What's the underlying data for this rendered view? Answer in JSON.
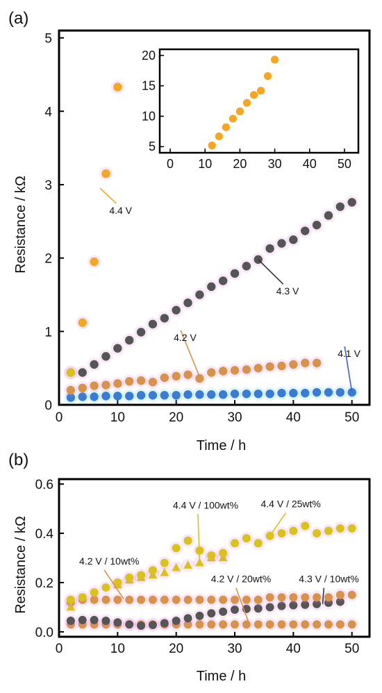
{
  "chart_data": [
    {
      "panel_label": "(a)",
      "type": "scatter",
      "xlabel": "Time / h",
      "ylabel": "Resistance / kΩ",
      "xlim": [
        0,
        53
      ],
      "ylim": [
        0,
        5.1
      ],
      "xticks": [
        "0",
        "10",
        "20",
        "30",
        "40",
        "50"
      ],
      "yticks": [
        "0",
        "1",
        "2",
        "3",
        "4",
        "5"
      ],
      "grid": false,
      "series": [
        {
          "name": "4.4 V",
          "color": "#F5A623",
          "marker": "circle",
          "x": [
            2,
            4,
            6,
            8,
            10
          ],
          "y": [
            0.44,
            1.12,
            1.95,
            3.15,
            4.33
          ]
        },
        {
          "name": "4.3 V",
          "color": "#555555",
          "marker": "circle",
          "x": [
            4,
            6,
            8,
            10,
            12,
            14,
            16,
            18,
            20,
            22,
            24,
            26,
            28,
            30,
            32,
            34,
            36,
            38,
            40,
            42,
            44,
            46,
            48,
            50
          ],
          "y": [
            0.44,
            0.55,
            0.66,
            0.77,
            0.88,
            0.99,
            1.1,
            1.18,
            1.29,
            1.39,
            1.5,
            1.61,
            1.69,
            1.79,
            1.89,
            1.98,
            2.13,
            2.2,
            2.25,
            2.37,
            2.45,
            2.58,
            2.7,
            2.76
          ]
        },
        {
          "name": "4.2 V",
          "color": "#D9924A",
          "marker": "circle",
          "x": [
            2,
            4,
            6,
            8,
            10,
            12,
            14,
            16,
            18,
            20,
            22,
            24,
            26,
            28,
            30,
            32,
            34,
            36,
            38,
            40,
            42,
            44
          ],
          "y": [
            0.2,
            0.23,
            0.26,
            0.27,
            0.29,
            0.32,
            0.33,
            0.31,
            0.37,
            0.39,
            0.41,
            0.36,
            0.44,
            0.46,
            0.47,
            0.48,
            0.5,
            0.52,
            0.53,
            0.55,
            0.57,
            0.57
          ]
        },
        {
          "name": "4.1 V",
          "color": "#3A7BD5",
          "marker": "circle",
          "x": [
            2,
            4,
            6,
            8,
            10,
            12,
            14,
            16,
            18,
            20,
            22,
            24,
            26,
            28,
            30,
            32,
            34,
            36,
            38,
            40,
            42,
            44,
            46,
            48,
            50
          ],
          "y": [
            0.1,
            0.11,
            0.11,
            0.12,
            0.12,
            0.12,
            0.13,
            0.13,
            0.13,
            0.13,
            0.14,
            0.14,
            0.14,
            0.14,
            0.15,
            0.15,
            0.15,
            0.15,
            0.16,
            0.16,
            0.16,
            0.17,
            0.17,
            0.17,
            0.17
          ]
        },
        {
          "name": "4.2 V / 10wt% (yellow)",
          "color": "#D9C21A",
          "marker": "circle",
          "x": [
            2
          ],
          "y": [
            0.44
          ]
        }
      ],
      "annotations": [
        {
          "text": "4.4 V",
          "x": 7,
          "y": 2.95,
          "tx": 10,
          "ty": 2.65
        },
        {
          "text": "4.3 V",
          "x": 34,
          "y": 1.98,
          "tx": 38.5,
          "ty": 1.55
        },
        {
          "text": "4.2 V",
          "x": 24,
          "y": 0.38,
          "tx": 21,
          "ty": 0.92
        },
        {
          "text": "4.1 V",
          "x": 50,
          "y": 0.17,
          "tx": 49,
          "ty": 0.7
        }
      ],
      "inset": {
        "xlim": [
          -3,
          54
        ],
        "ylim": [
          4,
          21
        ],
        "xticks": [
          "0",
          "10",
          "20",
          "30",
          "40",
          "50"
        ],
        "yticks": [
          "5",
          "10",
          "15",
          "20"
        ],
        "color": "#F5A623",
        "x": [
          12,
          14,
          16,
          18,
          20,
          22,
          24,
          26,
          28,
          30
        ],
        "y": [
          5.2,
          6.7,
          8.2,
          9.6,
          10.8,
          12.2,
          13.5,
          14.2,
          16.6,
          19.3
        ]
      }
    },
    {
      "panel_label": "(b)",
      "type": "scatter",
      "xlabel": "Time / h",
      "ylabel": "Resistance / kΩ",
      "xlim": [
        0,
        53
      ],
      "ylim": [
        -0.02,
        0.62
      ],
      "xticks": [
        "0",
        "10",
        "20",
        "30",
        "40",
        "50"
      ],
      "yticks": [
        "0.0",
        "0.2",
        "0.4",
        "0.6"
      ],
      "grid": false,
      "series": [
        {
          "name": "4.4 V / 25wt%",
          "color": "#D9C21A",
          "marker": "circle",
          "x": [
            2,
            4,
            6,
            8,
            10,
            12,
            14,
            16,
            18,
            20,
            22,
            24,
            26,
            28,
            30,
            32,
            34,
            36,
            38,
            40,
            42,
            44,
            46,
            48,
            50
          ],
          "y": [
            0.13,
            0.14,
            0.16,
            0.18,
            0.2,
            0.22,
            0.23,
            0.25,
            0.28,
            0.34,
            0.37,
            0.33,
            0.31,
            0.32,
            0.36,
            0.38,
            0.36,
            0.39,
            0.4,
            0.41,
            0.43,
            0.4,
            0.41,
            0.42,
            0.42
          ]
        },
        {
          "name": "4.4 V / 100wt%",
          "color": "#D9C21A",
          "marker": "triangle",
          "x": [
            2,
            10,
            12,
            14,
            16,
            18,
            20,
            22,
            24,
            26,
            28
          ],
          "y": [
            0.1,
            0.19,
            0.21,
            0.22,
            0.23,
            0.24,
            0.26,
            0.27,
            0.28,
            0.3,
            0.3
          ]
        },
        {
          "name": "4.2 V / 10wt%",
          "color": "#D9924A",
          "marker": "circle",
          "x": [
            2,
            4,
            6,
            8,
            10,
            12,
            14,
            16,
            18,
            20,
            22,
            24,
            26,
            28,
            30,
            32,
            34,
            36,
            38,
            40,
            42,
            44,
            46,
            48,
            50
          ],
          "y": [
            0.12,
            0.13,
            0.13,
            0.13,
            0.13,
            0.13,
            0.13,
            0.13,
            0.13,
            0.13,
            0.13,
            0.13,
            0.13,
            0.13,
            0.13,
            0.13,
            0.13,
            0.14,
            0.14,
            0.14,
            0.14,
            0.14,
            0.14,
            0.15,
            0.15
          ]
        },
        {
          "name": "4.3 V / 10wt%",
          "color": "#555555",
          "marker": "circle",
          "x": [
            2,
            4,
            6,
            8,
            10,
            12,
            14,
            16,
            18,
            20,
            22,
            24,
            26,
            28,
            30,
            32,
            34,
            36,
            38,
            40,
            42,
            44,
            46,
            48
          ],
          "y": [
            0.045,
            0.048,
            0.048,
            0.045,
            0.038,
            0.03,
            0.025,
            0.028,
            0.035,
            0.045,
            0.055,
            0.065,
            0.075,
            0.082,
            0.09,
            0.093,
            0.095,
            0.1,
            0.105,
            0.108,
            0.11,
            0.113,
            0.118,
            0.122
          ]
        },
        {
          "name": "4.2 V / 20wt%",
          "color": "#D9924A",
          "marker": "circle",
          "x": [
            2,
            4,
            6,
            8,
            10,
            12,
            14,
            16,
            18,
            20,
            22,
            24,
            26,
            28,
            30,
            32,
            34,
            36,
            38,
            40,
            42,
            44,
            46,
            48,
            50
          ],
          "y": [
            0.03,
            0.03,
            0.03,
            0.03,
            0.03,
            0.03,
            0.03,
            0.03,
            0.03,
            0.03,
            0.03,
            0.03,
            0.03,
            0.03,
            0.03,
            0.03,
            0.03,
            0.03,
            0.03,
            0.03,
            0.03,
            0.03,
            0.03,
            0.03,
            0.03
          ]
        }
      ],
      "annotations": [
        {
          "text": "4.4 V / 100wt%",
          "x": 24,
          "y": 0.29,
          "tx": 23,
          "ty": 0.495
        },
        {
          "text": "4.4 V / 25wt%",
          "x": 36,
          "y": 0.39,
          "tx": 38,
          "ty": 0.5
        },
        {
          "text": "4.2 V / 10wt%",
          "x": 11,
          "y": 0.135,
          "tx": 7,
          "ty": 0.268
        },
        {
          "text": "4.2 V / 20wt%",
          "x": 32.5,
          "y": 0.03,
          "tx": 29.5,
          "ty": 0.195
        },
        {
          "text": "4.3 V / 10wt%",
          "x": 45,
          "y": 0.113,
          "tx": 44.5,
          "ty": 0.195
        }
      ]
    }
  ]
}
